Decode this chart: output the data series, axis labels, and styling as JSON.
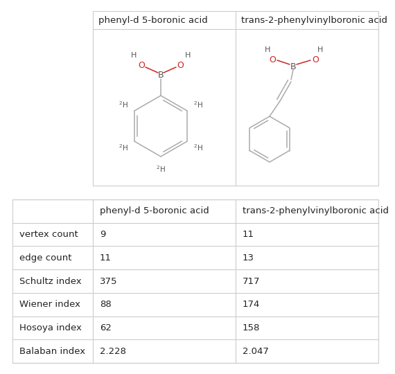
{
  "col_headers": [
    "",
    "phenyl-d 5-boronic acid",
    "trans-2-phenylvinylboronic acid"
  ],
  "rows": [
    [
      "vertex count",
      "9",
      "11"
    ],
    [
      "edge count",
      "11",
      "13"
    ],
    [
      "Schultz index",
      "375",
      "717"
    ],
    [
      "Wiener index",
      "88",
      "174"
    ],
    [
      "Hosoya index",
      "62",
      "158"
    ],
    [
      "Balaban index",
      "2.228",
      "2.047"
    ]
  ],
  "background_color": "#ffffff",
  "border_color": "#cccccc",
  "text_color": "#222222",
  "bond_color": "#aaaaaa",
  "red_color": "#cc2222",
  "header_fontsize": 9.5,
  "cell_fontsize": 9.5,
  "img_header_fontsize": 9.5
}
